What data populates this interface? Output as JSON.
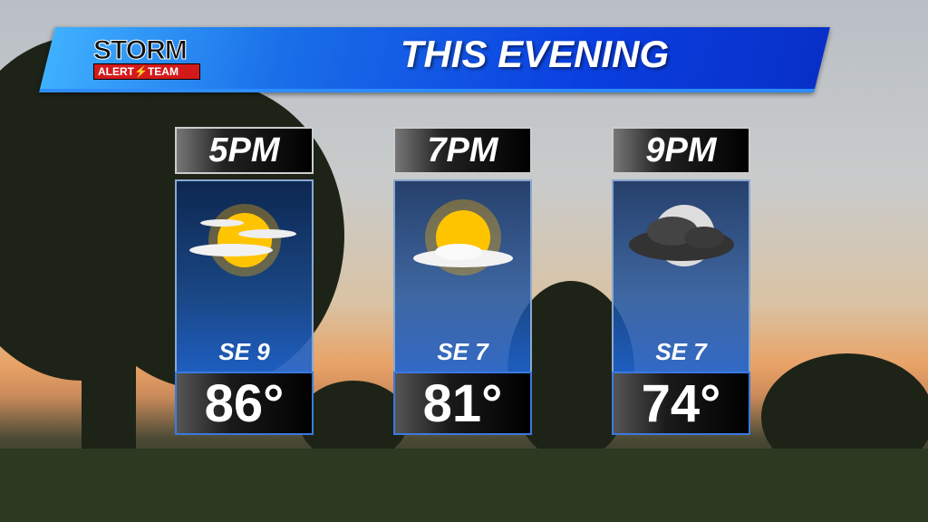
{
  "header": {
    "title": "THIS EVENING",
    "logo": {
      "line1": "STORM",
      "line2_left": "ALERT",
      "line2_right": "TEAM"
    }
  },
  "forecast": [
    {
      "time": "5PM",
      "icon": "partly-sunny-icon",
      "wind": "SE 9",
      "temp": "86°"
    },
    {
      "time": "7PM",
      "icon": "mostly-sunny-icon",
      "wind": "SE 7",
      "temp": "81°"
    },
    {
      "time": "9PM",
      "icon": "cloudy-night-moon-icon",
      "wind": "SE 7",
      "temp": "74°"
    }
  ],
  "colors": {
    "banner": "#1a5fe8",
    "logo_red": "#d31a1a",
    "sun": "#ffc400"
  }
}
